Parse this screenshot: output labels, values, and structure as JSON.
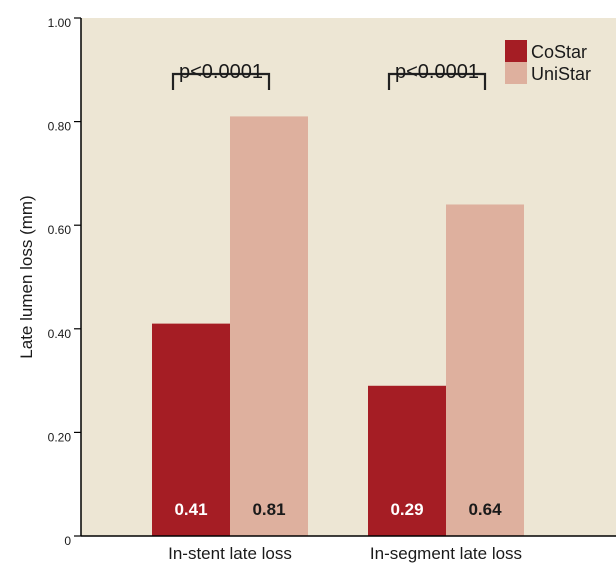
{
  "colors": {
    "plot_background": "#ede6d4",
    "costar": "#a51d24",
    "unistar": "#deb09e",
    "axis": "#000000",
    "bracket": "#222222",
    "value_label_text": "#ffffff",
    "value_label_text_light": "#1a1a1a"
  },
  "chart_data": {
    "type": "bar",
    "title": "",
    "xlabel": "",
    "ylabel": "Late lumen loss (mm)",
    "ylim": [
      0,
      1.0
    ],
    "yticks": [
      {
        "value": 0,
        "label": "0"
      },
      {
        "value": 0.2,
        "label": "0.20"
      },
      {
        "value": 0.4,
        "label": "0.40"
      },
      {
        "value": 0.6,
        "label": "0.60"
      },
      {
        "value": 0.8,
        "label": "0.80"
      },
      {
        "value": 1.0,
        "label": "1.00"
      }
    ],
    "categories": [
      "In-stent late loss",
      "In-segment late loss"
    ],
    "series": [
      {
        "name": "CoStar",
        "values": [
          0.41,
          0.29
        ],
        "labels": [
          "0.41",
          "0.29"
        ]
      },
      {
        "name": "UniStar",
        "values": [
          0.81,
          0.64
        ],
        "labels": [
          "0.81",
          "0.64"
        ]
      }
    ],
    "annotations": [
      "p<0.0001",
      "p<0.0001"
    ],
    "legend": {
      "position": "top-right",
      "entries": [
        "CoStar",
        "UniStar"
      ]
    },
    "grid": false
  }
}
